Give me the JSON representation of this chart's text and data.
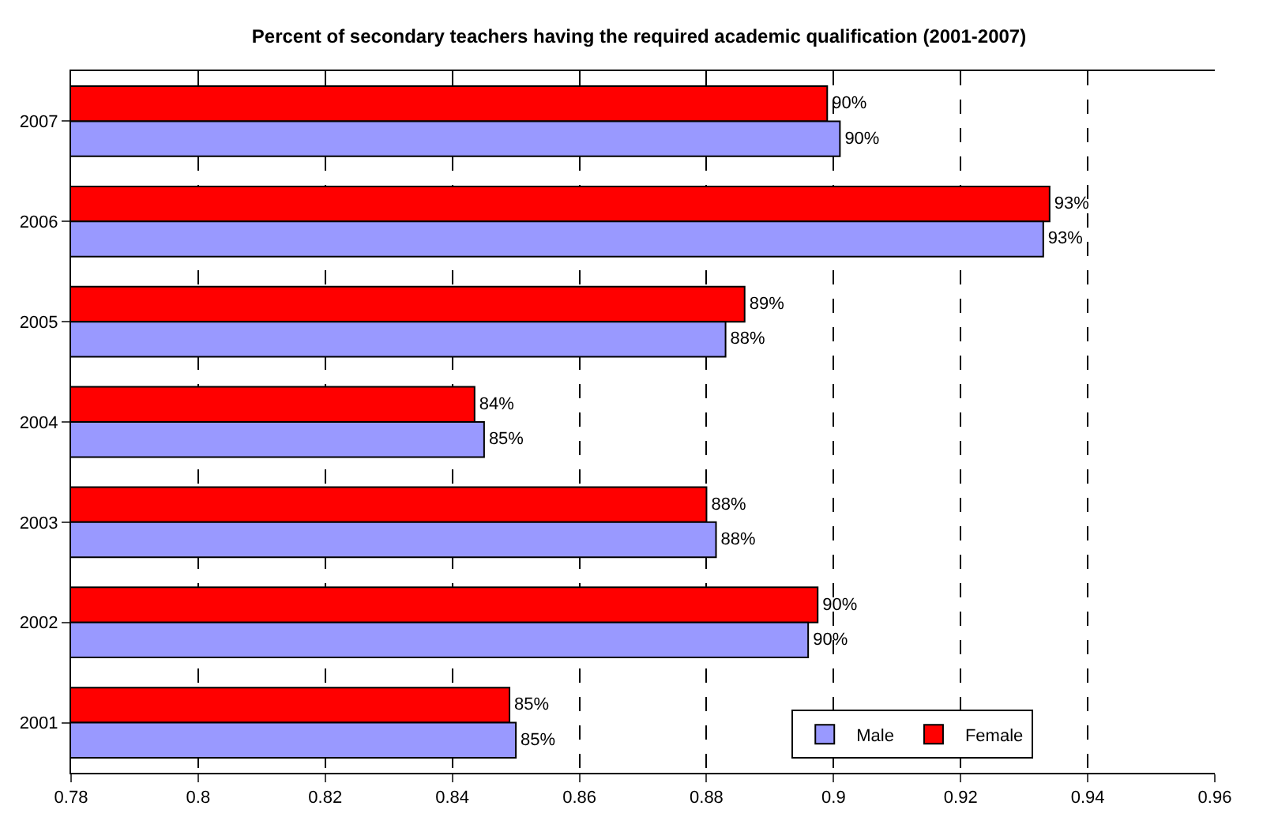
{
  "chart_data": {
    "type": "bar",
    "orientation": "horizontal",
    "title": "Percent of secondary teachers having the required academic qualification (2001-2007)",
    "categories": [
      "2007",
      "2006",
      "2005",
      "2004",
      "2003",
      "2002",
      "2001"
    ],
    "series": [
      {
        "name": "Male",
        "color": "#9999ff",
        "values": [
          0.901,
          0.933,
          0.883,
          0.845,
          0.8815,
          0.896,
          0.85
        ],
        "value_labels": [
          "90%",
          "93%",
          "88%",
          "85%",
          "88%",
          "90%",
          "85%"
        ]
      },
      {
        "name": "Female",
        "color": "#ff0000",
        "values": [
          0.899,
          0.934,
          0.886,
          0.8435,
          0.88,
          0.8975,
          0.849
        ],
        "value_labels": [
          "90%",
          "93%",
          "89%",
          "84%",
          "88%",
          "90%",
          "85%"
        ]
      }
    ],
    "xlim": [
      0.78,
      0.96
    ],
    "xticks": [
      0.78,
      0.8,
      0.82,
      0.84,
      0.86,
      0.88,
      0.9,
      0.92,
      0.94,
      0.96
    ],
    "grid": "x",
    "legend": "bottom right"
  }
}
